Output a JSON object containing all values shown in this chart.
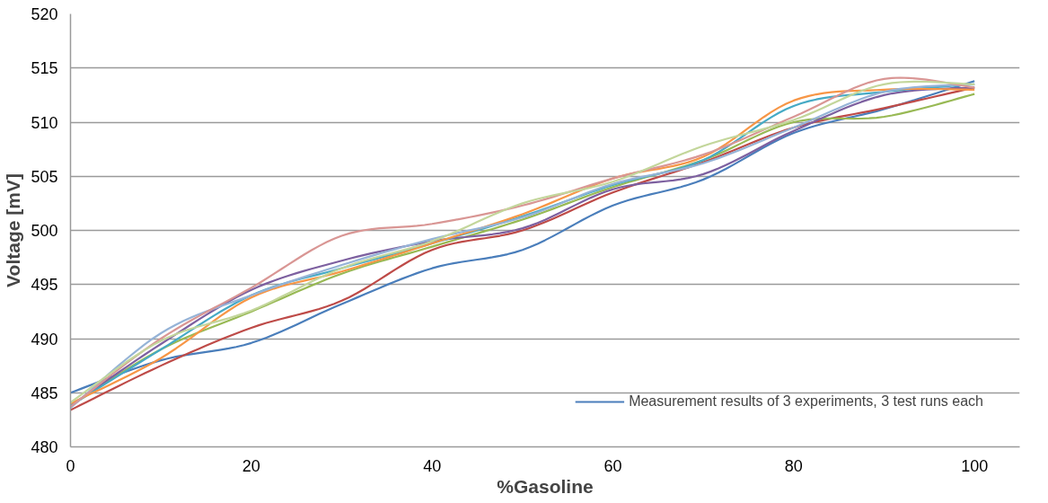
{
  "chart_data": {
    "type": "line",
    "xlabel": "%Gasoline",
    "ylabel": "Voltage [mV]",
    "x": [
      0,
      10,
      20,
      30,
      40,
      50,
      60,
      70,
      80,
      90,
      100
    ],
    "xlim": [
      0,
      105
    ],
    "xticks": [
      0,
      20,
      40,
      60,
      80,
      100
    ],
    "ylim": [
      480,
      520
    ],
    "yticks": [
      480,
      485,
      490,
      495,
      500,
      505,
      510,
      515,
      520
    ],
    "grid": "y",
    "legend": "bottom right",
    "marker": "none",
    "line_style": "solid",
    "series": [
      {
        "name": "Measurement results of 3 experiments, 3 test runs each",
        "color": "#4a7ebb",
        "values": [
          485,
          488,
          489.6,
          493.2,
          496.5,
          498.2,
          502.3,
          504.7,
          509,
          511.2,
          513.8
        ]
      },
      {
        "color": "#be4b48",
        "values": [
          483.4,
          487.5,
          491,
          493.5,
          498.2,
          500,
          503.5,
          506.3,
          509.5,
          511.3,
          513.2
        ]
      },
      {
        "color": "#98b954",
        "values": [
          483.8,
          489,
          492.5,
          496,
          498.5,
          501,
          504,
          506.5,
          510,
          510.5,
          512.6
        ]
      },
      {
        "color": "#7d60a0",
        "values": [
          483.8,
          489.5,
          494.5,
          497.2,
          499,
          500.2,
          503.8,
          505.2,
          509.2,
          512.5,
          513.2
        ]
      },
      {
        "color": "#46aac5",
        "values": [
          483.8,
          489,
          494,
          496.5,
          498.8,
          501.3,
          504.2,
          506.5,
          511.5,
          512.8,
          513.5
        ]
      },
      {
        "color": "#f79646",
        "values": [
          484,
          488.2,
          493.8,
          496.2,
          498.8,
          501.5,
          504.8,
          506.8,
          512,
          513,
          513
        ]
      },
      {
        "color": "#95b3d7",
        "values": [
          483.6,
          490.5,
          494,
          496.8,
          499.2,
          501.2,
          504.3,
          506.2,
          509.5,
          512.8,
          513.5
        ]
      },
      {
        "color": "#d99694",
        "values": [
          483.7,
          490,
          494.7,
          499.5,
          500.6,
          502.3,
          504.8,
          507,
          510.5,
          514,
          513.2
        ]
      },
      {
        "color": "#c3d69b",
        "values": [
          484.1,
          489.8,
          492.6,
          496.5,
          499,
          502.5,
          504.5,
          507.8,
          510.2,
          513.5,
          513.5
        ]
      }
    ]
  }
}
